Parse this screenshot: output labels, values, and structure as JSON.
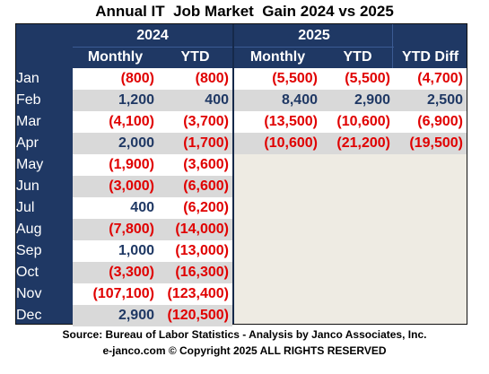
{
  "title": "Annual IT  Job Market  Gain 2024 vs 2025",
  "headers": {
    "year_2024": "2024",
    "year_2025": "2025",
    "monthly_2024": "Monthly",
    "ytd_2024": "YTD",
    "monthly_2025": "Monthly",
    "ytd_2025": "YTD",
    "ytd_diff": "YTD Diff"
  },
  "chart_data": {
    "type": "table",
    "title": "Annual IT  Job Market  Gain 2024 vs 2025",
    "columns": [
      "2024 Monthly",
      "2024 YTD",
      "2025 Monthly",
      "2025 YTD",
      "YTD Diff"
    ],
    "rows": [
      {
        "month": "Jan",
        "m2024": "(800)",
        "y2024": "(800)",
        "m2025": "(5,500)",
        "y2025": "(5,500)",
        "diff": "(4,700)"
      },
      {
        "month": "Feb",
        "m2024": "1,200",
        "y2024": "400",
        "m2025": "8,400",
        "y2025": "2,900",
        "diff": "2,500"
      },
      {
        "month": "Mar",
        "m2024": "(4,100)",
        "y2024": "(3,700)",
        "m2025": "(13,500)",
        "y2025": "(10,600)",
        "diff": "(6,900)"
      },
      {
        "month": "Apr",
        "m2024": "2,000",
        "y2024": "(1,700)",
        "m2025": "(10,600)",
        "y2025": "(21,200)",
        "diff": "(19,500)"
      },
      {
        "month": "May",
        "m2024": "(1,900)",
        "y2024": "(3,600)"
      },
      {
        "month": "Jun",
        "m2024": "(3,000)",
        "y2024": "(6,600)"
      },
      {
        "month": "Jul",
        "m2024": "400",
        "y2024": "(6,200)"
      },
      {
        "month": "Aug",
        "m2024": "(7,800)",
        "y2024": "(14,000)"
      },
      {
        "month": "Sep",
        "m2024": "1,000",
        "y2024": "(13,000)"
      },
      {
        "month": "Oct",
        "m2024": "(3,300)",
        "y2024": "(16,300)"
      },
      {
        "month": "Nov",
        "m2024": "(107,100)",
        "y2024": "(123,400)"
      },
      {
        "month": "Dec",
        "m2024": "2,900",
        "y2024": "(120,500)"
      }
    ]
  },
  "source_line": "Source: Bureau of Labor Statistics - Analysis by Janco Associates, Inc.",
  "copyright_line": "e-janco.com © Copyright 2025 ALL RIGHTS RESERVED",
  "colors": {
    "header_bg": "#1f3864",
    "negative": "#e00000",
    "positive": "#1f3864",
    "row_white": "#ffffff",
    "row_gray": "#d9d9d9",
    "empty_bg": "#eeebe3"
  }
}
